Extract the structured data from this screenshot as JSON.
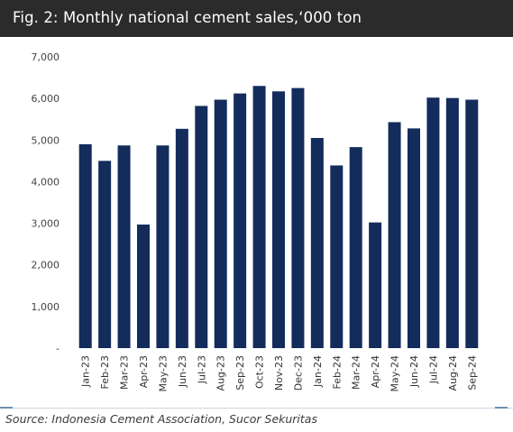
{
  "header": {
    "title": "Fig. 2: Monthly national cement sales,‘000 ton"
  },
  "footer": {
    "source": "Source: Indonesia Cement Association, Sucor Sekuritas"
  },
  "colors": {
    "bar": "#132c5b",
    "title_bar": "#2b2b2b",
    "divider": "#c8d6e2"
  },
  "chart_data": {
    "type": "bar",
    "title": "",
    "xlabel": "",
    "ylabel": "",
    "ylim": [
      0,
      7000
    ],
    "yticks": [
      0,
      1000,
      2000,
      3000,
      4000,
      5000,
      6000,
      7000
    ],
    "ytick_labels": [
      "-",
      "1,000",
      "2,000",
      "3,000",
      "4,000",
      "5,000",
      "6,000",
      "7,000"
    ],
    "grid": false,
    "categories": [
      "Jan-23",
      "Feb-23",
      "Mar-23",
      "Apr-23",
      "May-23",
      "Jun-23",
      "Jul-23",
      "Aug-23",
      "Sep-23",
      "Oct-23",
      "Nov-23",
      "Dec-23",
      "Jan-24",
      "Feb-24",
      "Mar-24",
      "Apr-24",
      "May-24",
      "Jun-24",
      "Jul-24",
      "Aug-24",
      "Sep-24"
    ],
    "values": [
      4900,
      4500,
      4870,
      2970,
      4870,
      5270,
      5820,
      5970,
      6120,
      6300,
      6170,
      6250,
      5050,
      4390,
      4830,
      3020,
      5430,
      5280,
      6020,
      6010,
      5970
    ]
  }
}
